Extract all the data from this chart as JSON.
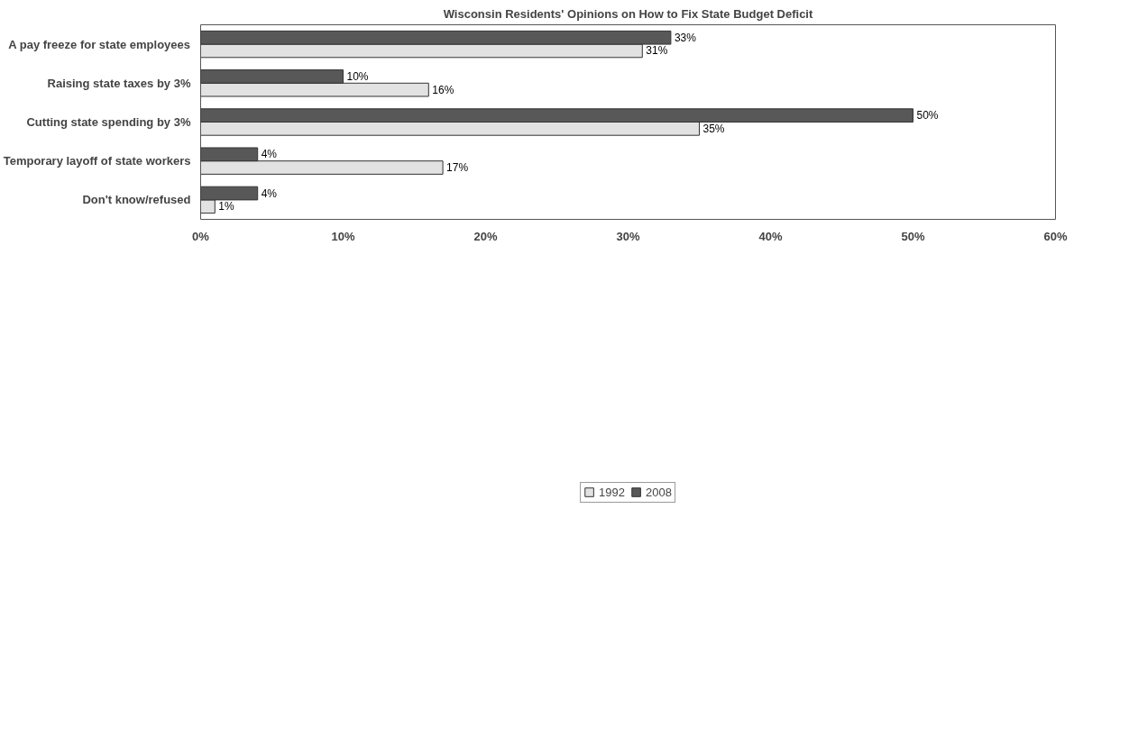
{
  "chart_data": {
    "type": "bar",
    "orientation": "horizontal",
    "title": "Wisconsin Residents' Opinions on How to Fix State Budget Deficit",
    "categories": [
      "A pay freeze for state employees",
      "Raising state taxes by 3%",
      "Cutting state spending by 3%",
      "Temporary layoff of state workers",
      "Don't know/refused"
    ],
    "series": [
      {
        "name": "1992",
        "color": "#e2e2e2",
        "values": [
          31,
          16,
          35,
          17,
          1
        ],
        "value_labels": [
          "31%",
          "16%",
          "35%",
          "17%",
          "1%"
        ]
      },
      {
        "name": "2008",
        "color": "#585858",
        "values": [
          33,
          10,
          50,
          4,
          4
        ],
        "value_labels": [
          "33%",
          "10%",
          "50%",
          "4%",
          "4%"
        ]
      }
    ],
    "xlim": [
      0,
      60
    ],
    "xticks": [
      {
        "value": 0,
        "label": "0%"
      },
      {
        "value": 10,
        "label": "10%"
      },
      {
        "value": 20,
        "label": "20%"
      },
      {
        "value": 30,
        "label": "30%"
      },
      {
        "value": 40,
        "label": "40%"
      },
      {
        "value": 50,
        "label": "50%"
      },
      {
        "value": 60,
        "label": "60%"
      }
    ],
    "grid": false,
    "legend": "bottom"
  }
}
